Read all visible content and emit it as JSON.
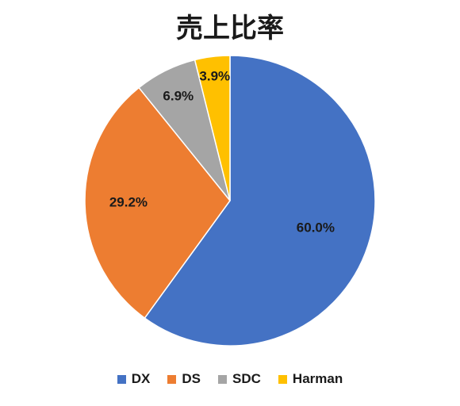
{
  "chart_data": {
    "type": "pie",
    "title": "売上比率",
    "categories": [
      "DX",
      "DS",
      "SDC",
      "Harman"
    ],
    "values": [
      60.0,
      29.2,
      6.9,
      3.9
    ],
    "data_labels": [
      "60.0%",
      "29.2%",
      "6.9%",
      "3.9%"
    ],
    "colors": [
      "#4472c4",
      "#ed7d31",
      "#a5a5a5",
      "#ffc000"
    ],
    "start": "12 o'clock",
    "direction": "clockwise",
    "legend_position": "bottom"
  }
}
